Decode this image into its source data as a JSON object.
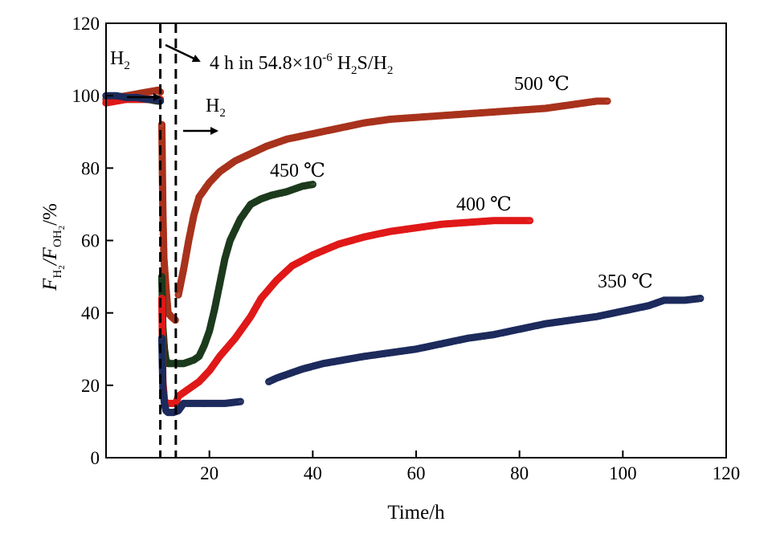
{
  "chart_data": {
    "type": "scatter",
    "title": "",
    "xlabel": "Time/h",
    "ylabel": {
      "parts": [
        "F",
        "H",
        "2",
        "/F",
        "OH",
        "2",
        "/%"
      ]
    },
    "xlim": [
      0,
      120
    ],
    "ylim": [
      0,
      120
    ],
    "xticks": [
      20,
      40,
      60,
      80,
      100,
      120
    ],
    "yticks": [
      0,
      20,
      40,
      60,
      80,
      100,
      120
    ],
    "x_origin_label": "",
    "grid": false,
    "legend": "none",
    "vlines": [
      10.5,
      13.5
    ],
    "annotations": {
      "h2_before": {
        "parts": [
          "H",
          "2"
        ]
      },
      "h2s": {
        "parts": [
          "4 h in 54.8×10",
          "-6",
          " H",
          "2",
          "S/H",
          "2"
        ]
      },
      "h2_after": {
        "parts": [
          "H",
          "2"
        ]
      }
    },
    "series": [
      {
        "name": "500 ℃",
        "color": "#a8321c",
        "segments": [
          [
            [
              0,
              99
            ],
            [
              2,
              99.5
            ],
            [
              4,
              100
            ],
            [
              6,
              100.5
            ],
            [
              8,
              101
            ],
            [
              10,
              101.5
            ],
            [
              10.5,
              101
            ]
          ],
          [
            [
              10.8,
              92
            ],
            [
              11,
              68
            ],
            [
              11.2,
              55
            ],
            [
              11.6,
              47
            ],
            [
              12,
              40
            ],
            [
              12.6,
              39
            ],
            [
              13.4,
              38
            ]
          ],
          [
            [
              14,
              45
            ],
            [
              15,
              52
            ],
            [
              16,
              60
            ],
            [
              17,
              67
            ],
            [
              18,
              72
            ],
            [
              20,
              76
            ],
            [
              22,
              79
            ],
            [
              25,
              82
            ],
            [
              28,
              84
            ],
            [
              31,
              86
            ],
            [
              35,
              88
            ],
            [
              40,
              89.5
            ],
            [
              45,
              91
            ],
            [
              50,
              92.5
            ],
            [
              55,
              93.5
            ],
            [
              60,
              94
            ],
            [
              65,
              94.5
            ],
            [
              70,
              95
            ],
            [
              75,
              95.5
            ],
            [
              80,
              96
            ],
            [
              85,
              96.5
            ],
            [
              90,
              97.5
            ],
            [
              95,
              98.5
            ],
            [
              97,
              98.5
            ]
          ]
        ]
      },
      {
        "name": "450 ℃",
        "color": "#1c3a1c",
        "segments": [
          [
            [
              0,
              98
            ],
            [
              2,
              99
            ],
            [
              4,
              99
            ],
            [
              6,
              99
            ],
            [
              8,
              99
            ],
            [
              10,
              98.5
            ],
            [
              10.5,
              98.5
            ]
          ],
          [
            [
              10.8,
              50
            ],
            [
              11,
              36
            ],
            [
              11.3,
              30
            ],
            [
              11.6,
              27
            ],
            [
              12,
              26
            ],
            [
              13,
              26
            ],
            [
              14,
              26
            ],
            [
              15,
              26
            ],
            [
              16,
              26.5
            ],
            [
              17,
              27
            ],
            [
              18,
              28
            ],
            [
              19,
              31
            ],
            [
              20,
              35
            ],
            [
              21,
              41
            ],
            [
              22,
              48
            ],
            [
              23,
              55
            ],
            [
              24,
              60
            ],
            [
              25,
              63
            ],
            [
              26,
              66
            ],
            [
              27,
              68
            ],
            [
              28,
              70
            ],
            [
              30,
              71.5
            ],
            [
              32,
              72.5
            ],
            [
              35,
              73.5
            ],
            [
              38,
              75
            ],
            [
              40,
              75.5
            ]
          ]
        ]
      },
      {
        "name": "400 ℃",
        "color": "#e01818",
        "segments": [
          [
            [
              0,
              98
            ],
            [
              2,
              98.5
            ],
            [
              4,
              99
            ],
            [
              6,
              99
            ],
            [
              8,
              99
            ],
            [
              10,
              99
            ],
            [
              10.5,
              99
            ]
          ],
          [
            [
              10.8,
              44
            ],
            [
              11,
              21
            ],
            [
              11.3,
              16
            ],
            [
              11.6,
              15
            ],
            [
              12,
              15
            ],
            [
              13,
              15
            ],
            [
              13.5,
              15
            ],
            [
              14,
              17
            ],
            [
              15,
              18
            ],
            [
              16,
              19
            ],
            [
              18,
              21
            ],
            [
              20,
              24
            ],
            [
              22,
              28
            ],
            [
              25,
              33
            ],
            [
              28,
              39
            ],
            [
              30,
              44
            ],
            [
              33,
              49
            ],
            [
              36,
              53
            ],
            [
              40,
              56
            ],
            [
              45,
              59
            ],
            [
              50,
              61
            ],
            [
              55,
              62.5
            ],
            [
              60,
              63.5
            ],
            [
              65,
              64.5
            ],
            [
              70,
              65
            ],
            [
              75,
              65.5
            ],
            [
              80,
              65.5
            ],
            [
              82,
              65.5
            ]
          ]
        ]
      },
      {
        "name": "350 ℃",
        "color": "#1c2a5c",
        "segments": [
          [
            [
              0,
              100
            ],
            [
              2,
              100
            ],
            [
              4,
              99.5
            ],
            [
              6,
              99.5
            ],
            [
              8,
              99
            ],
            [
              10,
              99
            ],
            [
              10.5,
              98.5
            ]
          ],
          [
            [
              10.8,
              33
            ],
            [
              11,
              19
            ],
            [
              11.3,
              15
            ],
            [
              11.6,
              13
            ],
            [
              12,
              12.5
            ],
            [
              13,
              12.5
            ],
            [
              14,
              13
            ],
            [
              15,
              15
            ],
            [
              17,
              15
            ],
            [
              20,
              15
            ],
            [
              23,
              15
            ],
            [
              26,
              15.5
            ]
          ],
          [
            [
              31.5,
              21
            ],
            [
              33,
              22
            ],
            [
              35,
              23
            ],
            [
              38,
              24.5
            ],
            [
              42,
              26
            ],
            [
              46,
              27
            ],
            [
              50,
              28
            ],
            [
              55,
              29
            ],
            [
              60,
              30
            ],
            [
              65,
              31.5
            ],
            [
              70,
              33
            ],
            [
              75,
              34
            ],
            [
              80,
              35.5
            ],
            [
              85,
              37
            ],
            [
              90,
              38
            ],
            [
              95,
              39
            ],
            [
              100,
              40.5
            ],
            [
              105,
              42
            ],
            [
              108,
              43.5
            ],
            [
              112,
              43.5
            ],
            [
              115,
              44
            ]
          ]
        ]
      }
    ]
  }
}
